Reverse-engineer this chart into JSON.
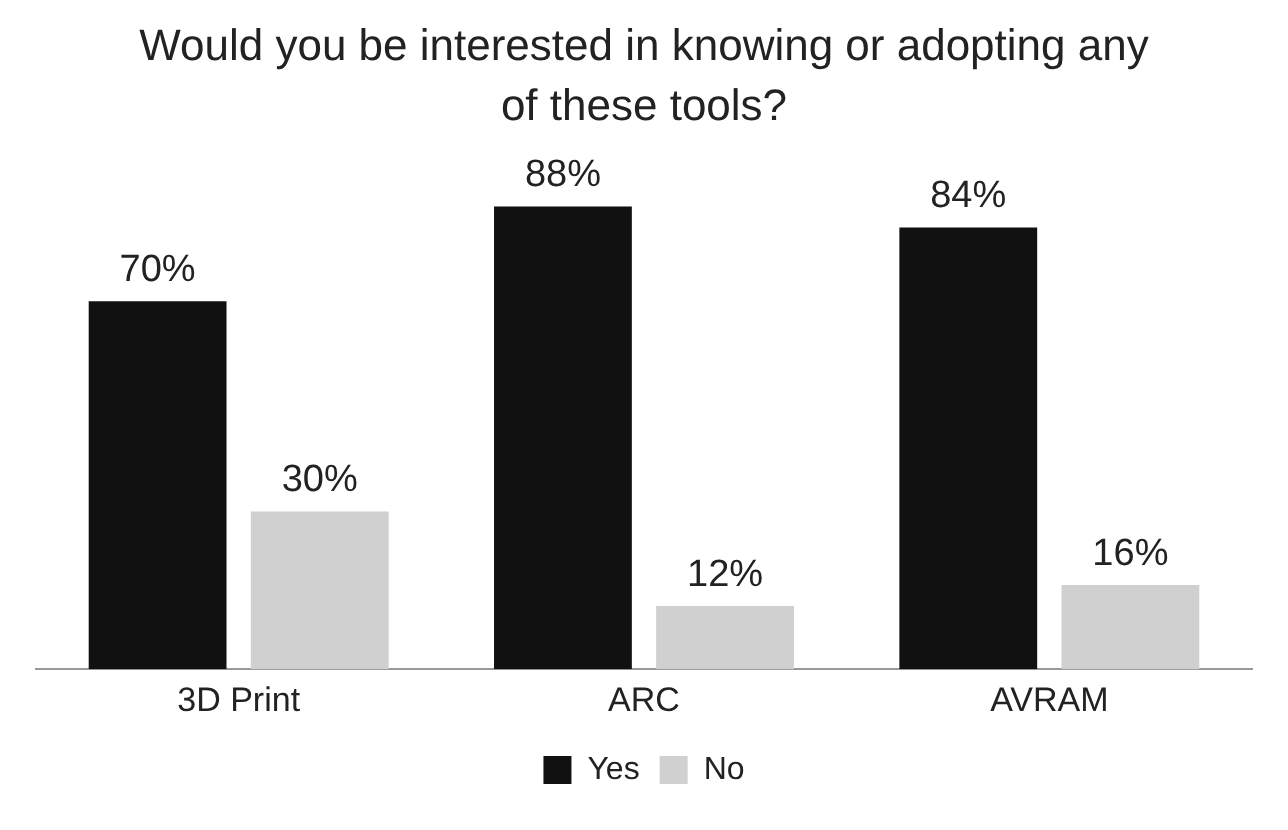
{
  "chart_data": {
    "type": "bar",
    "title": "Would you be interested in knowing or adopting any of these tools?",
    "categories": [
      "3D Print",
      "ARC",
      "AVRAM"
    ],
    "series": [
      {
        "name": "Yes",
        "color": "#111111",
        "values": [
          70,
          88,
          84
        ],
        "value_labels": [
          "70%",
          "88%",
          "84%"
        ]
      },
      {
        "name": "No",
        "color": "#d0d0d0",
        "values": [
          30,
          12,
          16
        ],
        "value_labels": [
          "30%",
          "12%",
          "16%"
        ]
      }
    ],
    "legend": "bottom",
    "grid": false
  }
}
